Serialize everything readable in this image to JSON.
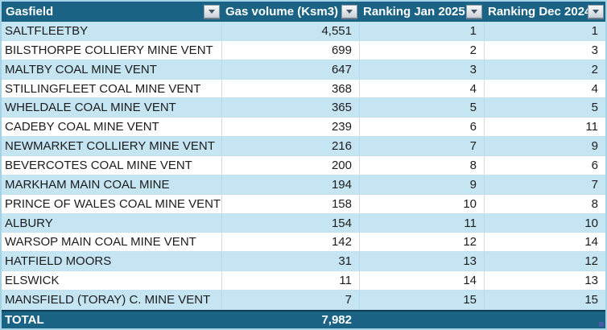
{
  "table": {
    "columns": [
      {
        "label": "Gasfield"
      },
      {
        "label": "Gas volume (Ksm3)"
      },
      {
        "label": "Ranking Jan 2025"
      },
      {
        "label": "Ranking Dec 2024"
      }
    ],
    "rows": [
      {
        "gasfield": "SALTFLEETBY",
        "gas_volume": "4,551",
        "rank_jan_2025": "1",
        "rank_dec_2024": "1"
      },
      {
        "gasfield": "BILSTHORPE COLLIERY MINE VENT",
        "gas_volume": "699",
        "rank_jan_2025": "2",
        "rank_dec_2024": "3"
      },
      {
        "gasfield": "MALTBY COAL MINE VENT",
        "gas_volume": "647",
        "rank_jan_2025": "3",
        "rank_dec_2024": "2"
      },
      {
        "gasfield": "STILLINGFLEET COAL MINE VENT",
        "gas_volume": "368",
        "rank_jan_2025": "4",
        "rank_dec_2024": "4"
      },
      {
        "gasfield": "WHELDALE COAL MINE VENT",
        "gas_volume": "365",
        "rank_jan_2025": "5",
        "rank_dec_2024": "5"
      },
      {
        "gasfield": "CADEBY COAL MINE VENT",
        "gas_volume": "239",
        "rank_jan_2025": "6",
        "rank_dec_2024": "11"
      },
      {
        "gasfield": "NEWMARKET COLLIERY MINE VENT",
        "gas_volume": "216",
        "rank_jan_2025": "7",
        "rank_dec_2024": "9"
      },
      {
        "gasfield": "BEVERCOTES COAL MINE VENT",
        "gas_volume": "200",
        "rank_jan_2025": "8",
        "rank_dec_2024": "6"
      },
      {
        "gasfield": "MARKHAM MAIN COAL MINE",
        "gas_volume": "194",
        "rank_jan_2025": "9",
        "rank_dec_2024": "7"
      },
      {
        "gasfield": "PRINCE OF WALES COAL MINE VENT",
        "gas_volume": "158",
        "rank_jan_2025": "10",
        "rank_dec_2024": "8"
      },
      {
        "gasfield": "ALBURY",
        "gas_volume": "154",
        "rank_jan_2025": "11",
        "rank_dec_2024": "10"
      },
      {
        "gasfield": "WARSOP MAIN COAL MINE VENT",
        "gas_volume": "142",
        "rank_jan_2025": "12",
        "rank_dec_2024": "14"
      },
      {
        "gasfield": "HATFIELD MOORS",
        "gas_volume": "31",
        "rank_jan_2025": "13",
        "rank_dec_2024": "12"
      },
      {
        "gasfield": "ELSWICK",
        "gas_volume": "11",
        "rank_jan_2025": "14",
        "rank_dec_2024": "13"
      },
      {
        "gasfield": "MANSFIELD (TORAY) C. MINE VENT",
        "gas_volume": "7",
        "rank_jan_2025": "15",
        "rank_dec_2024": "15"
      }
    ],
    "total": {
      "label": "TOTAL",
      "gas_volume": "7,982"
    }
  },
  "colors": {
    "header_bg": "#1B6384",
    "band_blue": "#C5E5F2",
    "band_white": "#FFFFFF",
    "outer_border": "#A5D3E6",
    "filter_arrow": "#44546A"
  }
}
